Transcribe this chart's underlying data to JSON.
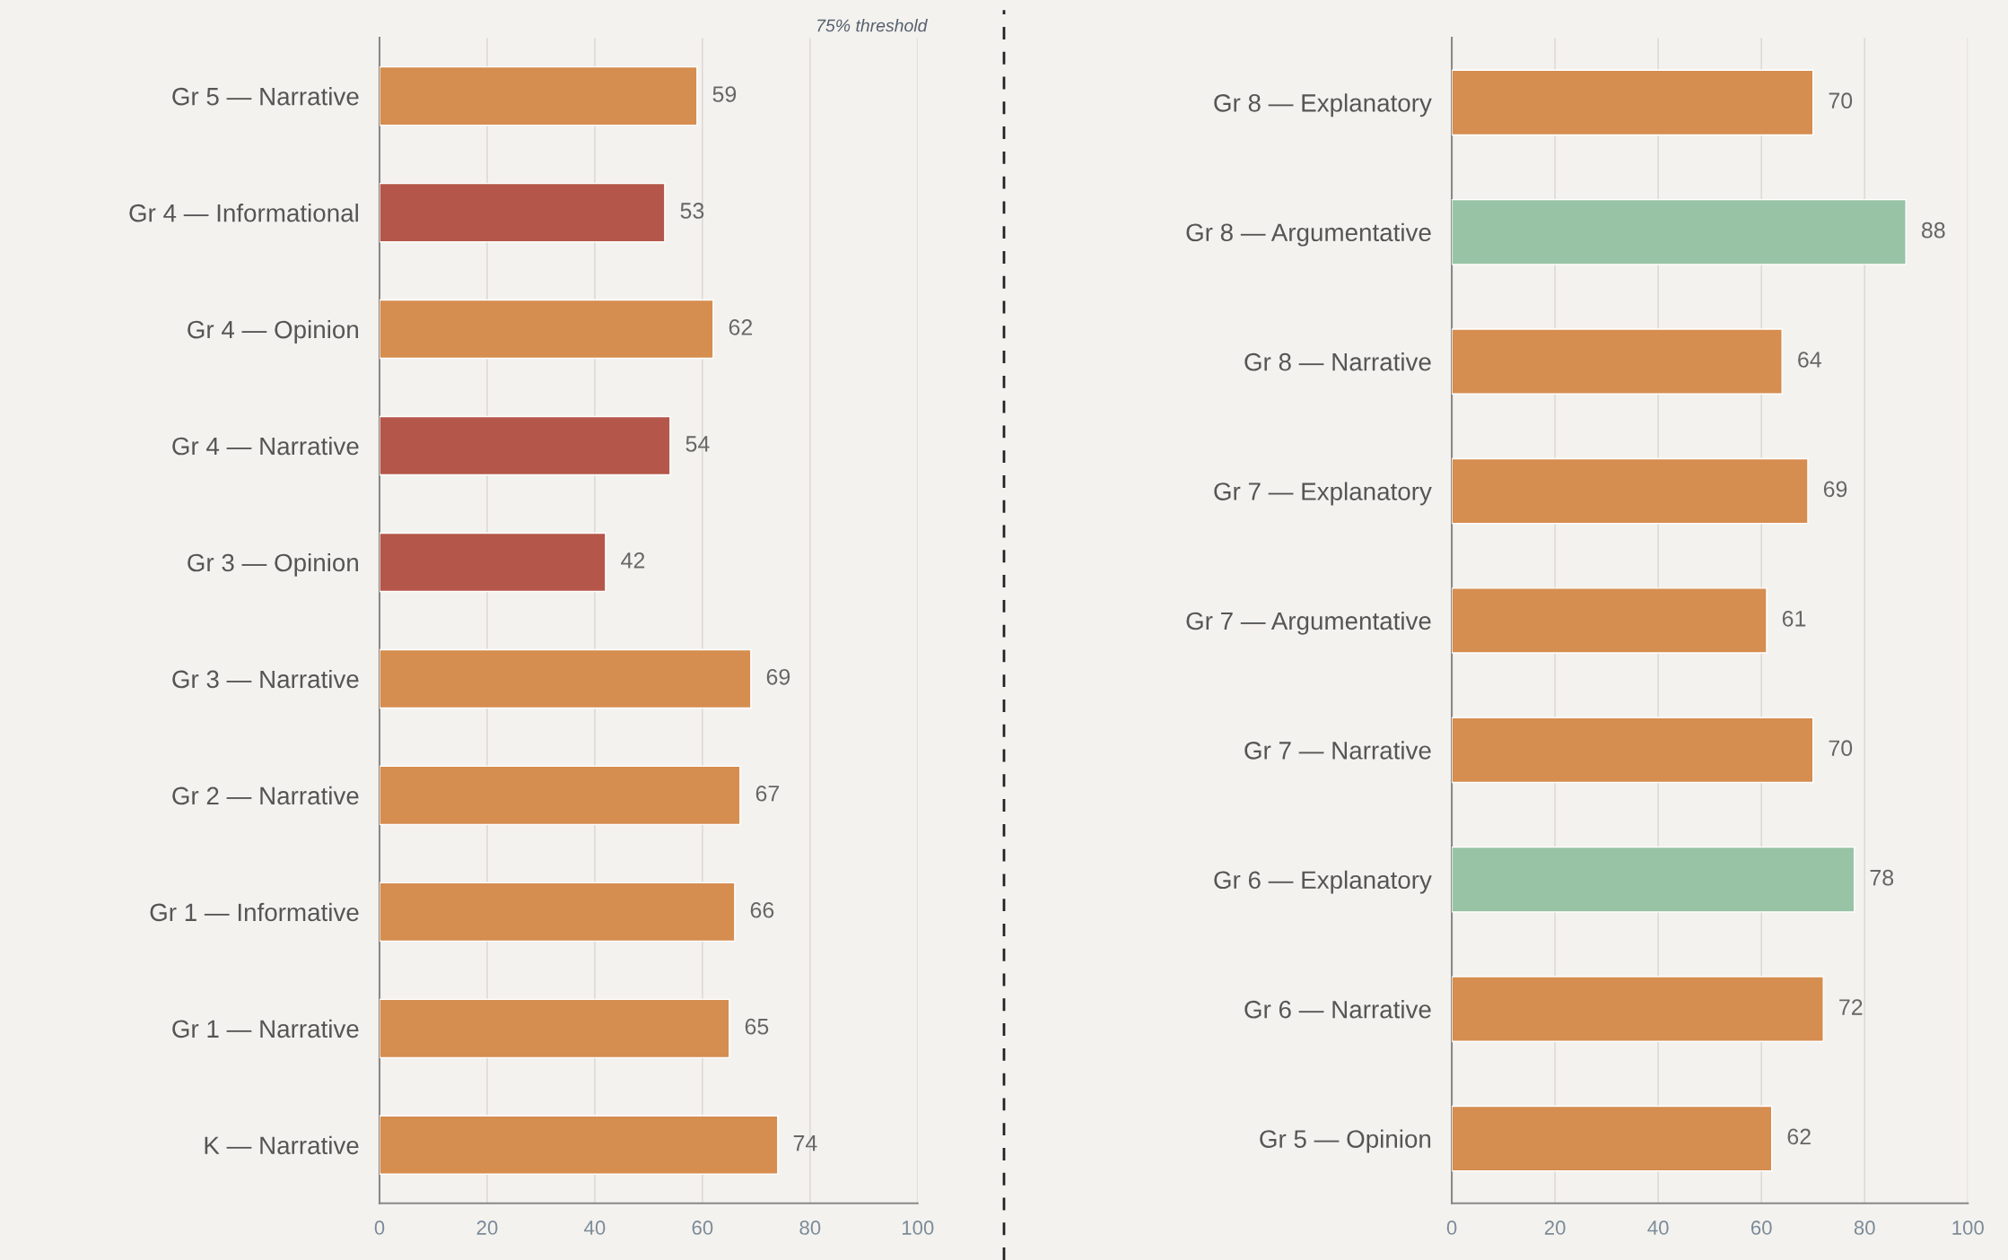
{
  "chart_data": [
    {
      "type": "bar",
      "orientation": "horizontal",
      "categories": [
        "Gr 5 — Narrative",
        "Gr 4 — Informational",
        "Gr 4 — Opinion",
        "Gr 4 — Narrative",
        "Gr 3 — Opinion",
        "Gr 3 — Narrative",
        "Gr 2 — Narrative",
        "Gr 1 — Informative",
        "Gr 1 — Narrative",
        "K — Narrative"
      ],
      "values": [
        59,
        53,
        62,
        54,
        42,
        69,
        67,
        66,
        65,
        74
      ],
      "colors": [
        "#d58d50",
        "#b4574a",
        "#d58d50",
        "#b4574a",
        "#b4574a",
        "#d58d50",
        "#d58d50",
        "#d58d50",
        "#d58d50",
        "#d58d50"
      ],
      "xlim": [
        0,
        100
      ],
      "xticks": [
        0,
        20,
        40,
        60,
        80,
        100
      ],
      "grid": "x",
      "data_labels": true,
      "legend": false,
      "annotations": [
        "75% threshold"
      ]
    },
    {
      "type": "bar",
      "orientation": "horizontal",
      "categories": [
        "Gr 8 — Explanatory",
        "Gr 8 — Argumentative",
        "Gr 8 — Narrative",
        "Gr 7 — Explanatory",
        "Gr 7 — Argumentative",
        "Gr 7 — Narrative",
        "Gr 6 — Explanatory",
        "Gr 6 — Narrative",
        "Gr 5 — Opinion"
      ],
      "values": [
        70,
        88,
        64,
        69,
        61,
        70,
        78,
        72,
        62
      ],
      "colors": [
        "#d58d50",
        "#98c3a5",
        "#d58d50",
        "#d58d50",
        "#d58d50",
        "#d58d50",
        "#98c3a5",
        "#d58d50",
        "#d58d50"
      ],
      "xlim": [
        0,
        100
      ],
      "xticks": [
        0,
        20,
        40,
        60,
        80,
        100
      ],
      "grid": "x",
      "data_labels": true,
      "legend": false
    }
  ]
}
